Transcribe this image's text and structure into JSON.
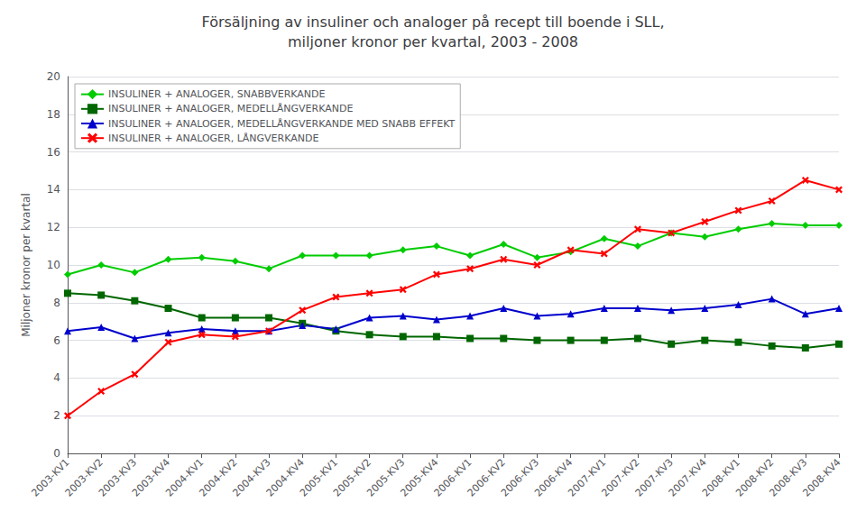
{
  "chart_data": {
    "type": "line",
    "title": "Försäljning av insuliner och analoger på recept till boende i SLL,\nmiljoner kronor per kvartal, 2003 - 2008",
    "ylabel": "Miljoner kronor per kvartal",
    "categories": [
      "2003-KV1",
      "2003-KV2",
      "2003-KV3",
      "2003-KV4",
      "2004-KV1",
      "2004-KV2",
      "2004-KV3",
      "2004-KV4",
      "2005-KV1",
      "2005-KV2",
      "2005-KV3",
      "2005-KV4",
      "2006-KV1",
      "2006-KV2",
      "2006-KV3",
      "2006-KV4",
      "2007-KV1",
      "2007-KV2",
      "2007-KV3",
      "2007-KV4",
      "2008-KV1",
      "2008-KV2",
      "2008-KV3",
      "2008-KV4"
    ],
    "series": [
      {
        "name": "INSULINER + ANALOGER, SNABBVERKANDE",
        "color": "#00CC00",
        "marker": "diamond",
        "values": [
          9.5,
          10.0,
          9.6,
          10.3,
          10.4,
          10.2,
          9.8,
          10.5,
          10.5,
          10.5,
          10.8,
          11.0,
          10.5,
          11.1,
          10.4,
          10.7,
          11.4,
          11.0,
          11.7,
          11.5,
          11.9,
          12.2,
          12.1,
          12.1
        ]
      },
      {
        "name": "INSULINER + ANALOGER, MEDELLÅNGVERKANDE",
        "color": "#006600",
        "marker": "square",
        "values": [
          8.5,
          8.4,
          8.1,
          7.7,
          7.2,
          7.2,
          7.2,
          6.9,
          6.5,
          6.3,
          6.2,
          6.2,
          6.1,
          6.1,
          6.0,
          6.0,
          6.0,
          6.1,
          5.8,
          6.0,
          5.9,
          5.7,
          5.6,
          5.8
        ]
      },
      {
        "name": "INSULINER + ANALOGER, MEDELLÅNGVERKANDE MED SNABB EFFEKT",
        "color": "#0000CC",
        "marker": "triangle",
        "values": [
          6.5,
          6.7,
          6.1,
          6.4,
          6.6,
          6.5,
          6.5,
          6.8,
          6.6,
          7.2,
          7.3,
          7.1,
          7.3,
          7.7,
          7.3,
          7.4,
          7.7,
          7.7,
          7.6,
          7.7,
          7.9,
          8.2,
          7.4,
          7.7
        ]
      },
      {
        "name": "INSULINER + ANALOGER, LÅNGVERKANDE",
        "color": "#FF0000",
        "marker": "x",
        "values": [
          2.0,
          3.3,
          4.2,
          5.9,
          6.3,
          6.2,
          6.5,
          7.6,
          8.3,
          8.5,
          8.7,
          9.5,
          9.8,
          10.3,
          10.0,
          10.8,
          10.6,
          11.9,
          11.7,
          12.3,
          12.9,
          13.4,
          14.5,
          14.0
        ]
      }
    ],
    "ylim": [
      0,
      20
    ],
    "yticks": [
      0,
      2,
      4,
      6,
      8,
      10,
      12,
      14,
      16,
      18,
      20
    ],
    "grid": true,
    "legend": "upper left"
  }
}
